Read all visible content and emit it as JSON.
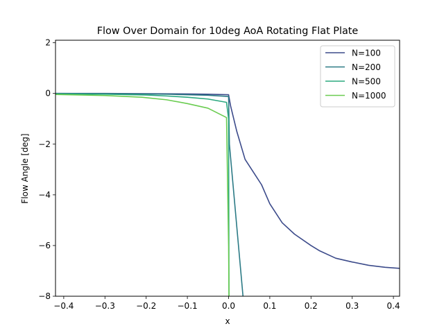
{
  "chart_data": {
    "type": "line",
    "title": "Flow Over Domain for 10deg AoA Rotating Flat Plate",
    "xlabel": "x",
    "ylabel": "Flow Angle [deg]",
    "xlim": [
      -0.42,
      0.415
    ],
    "ylim": [
      -8,
      2.1
    ],
    "xticks": [
      -0.4,
      -0.3,
      -0.2,
      -0.1,
      0.0,
      0.1,
      0.2,
      0.3,
      0.4
    ],
    "xtick_labels": [
      "−0.4",
      "−0.3",
      "−0.2",
      "−0.1",
      "0.0",
      "0.1",
      "0.2",
      "0.3",
      "0.4"
    ],
    "yticks": [
      -8,
      -6,
      -4,
      -2,
      0,
      2
    ],
    "ytick_labels": [
      "−8",
      "−6",
      "−4",
      "−2",
      "0",
      "2"
    ],
    "grid": false,
    "legend_position": "top-right",
    "series": [
      {
        "name": "N=100",
        "color": "#3b4a8a",
        "x": [
          -0.42,
          -0.3,
          -0.2,
          -0.1,
          -0.05,
          0.0,
          0.005,
          0.02,
          0.04,
          0.06,
          0.08,
          0.1,
          0.13,
          0.16,
          0.2,
          0.22,
          0.26,
          0.3,
          0.34,
          0.38,
          0.415
        ],
        "y": [
          0.0,
          0.0,
          -0.01,
          -0.02,
          -0.03,
          -0.05,
          -0.5,
          -1.5,
          -2.6,
          -3.1,
          -3.6,
          -4.35,
          -5.1,
          -5.55,
          -6.0,
          -6.2,
          -6.5,
          -6.65,
          -6.78,
          -6.86,
          -6.9
        ]
      },
      {
        "name": "N=200",
        "color": "#2b7a85",
        "x": [
          -0.42,
          -0.3,
          -0.2,
          -0.15,
          -0.1,
          -0.05,
          0.0,
          0.002,
          0.035
        ],
        "y": [
          0.0,
          -0.01,
          -0.02,
          -0.03,
          -0.05,
          -0.07,
          -0.12,
          -2.0,
          -8.0
        ]
      },
      {
        "name": "N=500",
        "color": "#2aa87f",
        "x": [
          -0.42,
          -0.3,
          -0.2,
          -0.15,
          -0.1,
          -0.05,
          -0.005,
          0.0,
          0.001
        ],
        "y": [
          -0.02,
          -0.03,
          -0.06,
          -0.1,
          -0.15,
          -0.22,
          -0.35,
          -1.0,
          -8.0
        ]
      },
      {
        "name": "N=1000",
        "color": "#6acc50",
        "x": [
          -0.42,
          -0.3,
          -0.21,
          -0.15,
          -0.1,
          -0.05,
          -0.005,
          0.0,
          0.001
        ],
        "y": [
          -0.04,
          -0.08,
          -0.15,
          -0.25,
          -0.4,
          -0.58,
          -0.95,
          -6.0,
          -8.0
        ]
      }
    ]
  }
}
